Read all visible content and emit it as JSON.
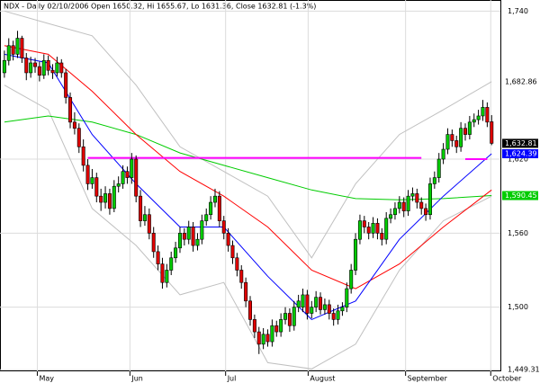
{
  "chart_data": {
    "type": "candlestick",
    "title": "NDX - Daily 02/10/2006 Open 1650.32, Hi 1655.67, Lo 1631.36, Close 1632.81 (-1.3%)",
    "ylim": [
      1448,
      1749
    ],
    "yticks": [
      {
        "value": 1740,
        "label": "1,740"
      },
      {
        "value": 1620,
        "label": "1,620"
      },
      {
        "value": 1560,
        "label": "1,560"
      },
      {
        "value": 1500,
        "label": "1,500"
      },
      {
        "value": 1449.31,
        "label": "1,449.31"
      }
    ],
    "xlim": [
      -1,
      113
    ],
    "xticks": [
      {
        "value": 7.5,
        "label": "May"
      },
      {
        "value": 28.6,
        "label": "Jun"
      },
      {
        "value": 50.4,
        "label": "Jul"
      },
      {
        "value": 69.2,
        "label": "August"
      },
      {
        "value": 91.4,
        "label": "September"
      },
      {
        "value": 110.8,
        "label": "October"
      }
    ],
    "grid": true,
    "up_color": "#00cc00",
    "down_color": "#e00000",
    "ohlc": [
      [
        1690,
        1708,
        1686,
        1700
      ],
      [
        1700,
        1718,
        1696,
        1712
      ],
      [
        1712,
        1716,
        1700,
        1705
      ],
      [
        1705,
        1724,
        1702,
        1718
      ],
      [
        1718,
        1720,
        1698,
        1702
      ],
      [
        1702,
        1706,
        1684,
        1690
      ],
      [
        1690,
        1703,
        1686,
        1698
      ],
      [
        1698,
        1702,
        1690,
        1695
      ],
      [
        1695,
        1699,
        1683,
        1688
      ],
      [
        1688,
        1705,
        1685,
        1700
      ],
      [
        1700,
        1704,
        1688,
        1692
      ],
      [
        1692,
        1697,
        1685,
        1690
      ],
      [
        1690,
        1703,
        1687,
        1698
      ],
      [
        1698,
        1701,
        1686,
        1690
      ],
      [
        1690,
        1693,
        1665,
        1670
      ],
      [
        1670,
        1674,
        1645,
        1650
      ],
      [
        1650,
        1658,
        1640,
        1645
      ],
      [
        1645,
        1649,
        1625,
        1630
      ],
      [
        1630,
        1636,
        1610,
        1615
      ],
      [
        1615,
        1620,
        1595,
        1600
      ],
      [
        1600,
        1612,
        1596,
        1605
      ],
      [
        1605,
        1609,
        1585,
        1590
      ],
      [
        1590,
        1596,
        1578,
        1585
      ],
      [
        1585,
        1598,
        1580,
        1592
      ],
      [
        1592,
        1596,
        1575,
        1580
      ],
      [
        1580,
        1603,
        1577,
        1598
      ],
      [
        1598,
        1606,
        1593,
        1600
      ],
      [
        1600,
        1615,
        1596,
        1610
      ],
      [
        1610,
        1614,
        1600,
        1605
      ],
      [
        1605,
        1625,
        1600,
        1620
      ],
      [
        1620,
        1623,
        1585,
        1590
      ],
      [
        1590,
        1595,
        1565,
        1570
      ],
      [
        1570,
        1582,
        1566,
        1575
      ],
      [
        1575,
        1580,
        1555,
        1560
      ],
      [
        1560,
        1565,
        1540,
        1545
      ],
      [
        1545,
        1550,
        1530,
        1535
      ],
      [
        1535,
        1540,
        1515,
        1520
      ],
      [
        1520,
        1535,
        1516,
        1530
      ],
      [
        1530,
        1545,
        1526,
        1540
      ],
      [
        1540,
        1553,
        1536,
        1548
      ],
      [
        1548,
        1565,
        1544,
        1560
      ],
      [
        1560,
        1564,
        1550,
        1555
      ],
      [
        1555,
        1570,
        1551,
        1565
      ],
      [
        1565,
        1569,
        1545,
        1550
      ],
      [
        1550,
        1560,
        1546,
        1555
      ],
      [
        1555,
        1575,
        1551,
        1570
      ],
      [
        1570,
        1580,
        1566,
        1575
      ],
      [
        1575,
        1590,
        1571,
        1585
      ],
      [
        1585,
        1596,
        1581,
        1590
      ],
      [
        1590,
        1594,
        1565,
        1570
      ],
      [
        1570,
        1574,
        1555,
        1560
      ],
      [
        1560,
        1564,
        1545,
        1550
      ],
      [
        1550,
        1554,
        1535,
        1540
      ],
      [
        1540,
        1544,
        1525,
        1530
      ],
      [
        1530,
        1534,
        1515,
        1520
      ],
      [
        1520,
        1524,
        1500,
        1505
      ],
      [
        1505,
        1509,
        1485,
        1490
      ],
      [
        1490,
        1494,
        1475,
        1480
      ],
      [
        1480,
        1484,
        1462,
        1470
      ],
      [
        1470,
        1483,
        1466,
        1478
      ],
      [
        1478,
        1482,
        1468,
        1472
      ],
      [
        1472,
        1490,
        1468,
        1485
      ],
      [
        1485,
        1489,
        1476,
        1480
      ],
      [
        1480,
        1495,
        1476,
        1490
      ],
      [
        1490,
        1500,
        1486,
        1495
      ],
      [
        1495,
        1499,
        1480,
        1485
      ],
      [
        1485,
        1505,
        1481,
        1500
      ],
      [
        1500,
        1510,
        1496,
        1505
      ],
      [
        1500,
        1515,
        1496,
        1510
      ],
      [
        1510,
        1514,
        1490,
        1495
      ],
      [
        1495,
        1505,
        1491,
        1500
      ],
      [
        1500,
        1513,
        1496,
        1508
      ],
      [
        1508,
        1512,
        1494,
        1498
      ],
      [
        1498,
        1507,
        1494,
        1502
      ],
      [
        1502,
        1506,
        1490,
        1495
      ],
      [
        1495,
        1499,
        1485,
        1490
      ],
      [
        1490,
        1502,
        1486,
        1497
      ],
      [
        1497,
        1504,
        1493,
        1500
      ],
      [
        1500,
        1520,
        1496,
        1515
      ],
      [
        1515,
        1535,
        1511,
        1530
      ],
      [
        1530,
        1560,
        1526,
        1555
      ],
      [
        1555,
        1575,
        1551,
        1570
      ],
      [
        1570,
        1574,
        1560,
        1565
      ],
      [
        1565,
        1569,
        1555,
        1560
      ],
      [
        1560,
        1573,
        1556,
        1568
      ],
      [
        1568,
        1572,
        1555,
        1560
      ],
      [
        1560,
        1564,
        1550,
        1555
      ],
      [
        1555,
        1577,
        1551,
        1572
      ],
      [
        1572,
        1580,
        1568,
        1575
      ],
      [
        1575,
        1585,
        1571,
        1580
      ],
      [
        1580,
        1590,
        1576,
        1585
      ],
      [
        1585,
        1589,
        1573,
        1578
      ],
      [
        1578,
        1595,
        1574,
        1590
      ],
      [
        1590,
        1597,
        1586,
        1592
      ],
      [
        1592,
        1596,
        1580,
        1585
      ],
      [
        1585,
        1589,
        1575,
        1580
      ],
      [
        1580,
        1584,
        1570,
        1575
      ],
      [
        1575,
        1605,
        1571,
        1600
      ],
      [
        1600,
        1610,
        1596,
        1605
      ],
      [
        1605,
        1625,
        1601,
        1620
      ],
      [
        1620,
        1633,
        1616,
        1628
      ],
      [
        1628,
        1645,
        1624,
        1640
      ],
      [
        1640,
        1644,
        1630,
        1635
      ],
      [
        1635,
        1639,
        1625,
        1630
      ],
      [
        1630,
        1650,
        1626,
        1645
      ],
      [
        1645,
        1649,
        1635,
        1640
      ],
      [
        1640,
        1655,
        1636,
        1650
      ],
      [
        1650,
        1657,
        1646,
        1652
      ],
      [
        1652,
        1660,
        1648,
        1655
      ],
      [
        1655,
        1668,
        1651,
        1662
      ],
      [
        1662,
        1666,
        1646,
        1650
      ],
      [
        1650.32,
        1655.67,
        1631.36,
        1632.81
      ]
    ],
    "close_label": "1,632.81",
    "overlays": [
      {
        "color": "#c0c0c0",
        "x": [
          0,
          10,
          20,
          30,
          40,
          50,
          60,
          70,
          80,
          90,
          100,
          111
        ],
        "values": [
          1740,
          1730,
          1720,
          1680,
          1630,
          1610,
          1590,
          1540,
          1600,
          1640,
          1660,
          1682.86
        ],
        "last_label": "1,682.86"
      },
      {
        "color": "#c0c0c0",
        "x": [
          0,
          10,
          20,
          30,
          40,
          50,
          60,
          70,
          80,
          90,
          100,
          111
        ],
        "values": [
          1680,
          1660,
          1580,
          1550,
          1510,
          1520,
          1455,
          1450,
          1470,
          1530,
          1570,
          1590
        ]
      },
      {
        "color": "#00cc00",
        "x": [
          0,
          10,
          20,
          30,
          40,
          50,
          60,
          70,
          80,
          90,
          100,
          111
        ],
        "values": [
          1650,
          1655,
          1650,
          1640,
          1625,
          1615,
          1605,
          1595,
          1588,
          1587,
          1588,
          1590.45
        ],
        "last_label": "1,590.45"
      },
      {
        "color": "#ff0000",
        "x": [
          0,
          10,
          20,
          30,
          40,
          50,
          60,
          70,
          80,
          90,
          100,
          111
        ],
        "values": [
          1712,
          1705,
          1675,
          1640,
          1610,
          1590,
          1565,
          1530,
          1515,
          1535,
          1565,
          1595
        ]
      },
      {
        "color": "#0000ff",
        "x": [
          0,
          10,
          20,
          30,
          40,
          50,
          60,
          70,
          80,
          90,
          100,
          111
        ],
        "values": [
          1705,
          1698,
          1640,
          1600,
          1565,
          1565,
          1525,
          1490,
          1505,
          1555,
          1590,
          1624.39
        ],
        "last_label": "1,624.39"
      }
    ],
    "levels": [
      {
        "color": "#ff00ff",
        "value": 1621,
        "x": [
          19,
          95
        ]
      },
      {
        "color": "#ff00ff",
        "value": 1620,
        "x": [
          105,
          110
        ]
      }
    ]
  }
}
